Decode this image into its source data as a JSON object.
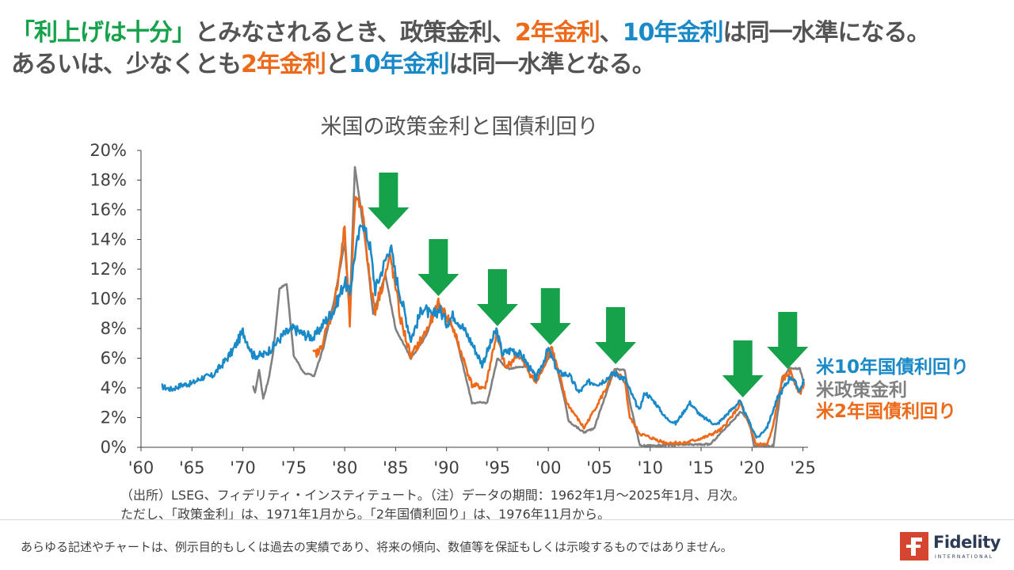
{
  "headline": {
    "line1": [
      {
        "text": "「利上げは十分」",
        "color": "green"
      },
      {
        "text": "とみなされるとき、政策金利、",
        "color": "gray"
      },
      {
        "text": "2年金利",
        "color": "orange"
      },
      {
        "text": "、",
        "color": "gray"
      },
      {
        "text": "10年金利",
        "color": "blue"
      },
      {
        "text": "は同一水準になる。",
        "color": "gray"
      }
    ],
    "line2": [
      {
        "text": "あるいは、少なくとも",
        "color": "gray"
      },
      {
        "text": "2年金利",
        "color": "orange"
      },
      {
        "text": "と",
        "color": "gray"
      },
      {
        "text": "10年金利",
        "color": "blue"
      },
      {
        "text": "は同一水準となる。",
        "color": "gray"
      }
    ]
  },
  "colors": {
    "green": "#15a24a",
    "orange": "#ec6a1a",
    "blue": "#1a89c8",
    "gray": "#545454",
    "policy": "#808080"
  },
  "chart_data": {
    "type": "line",
    "title": "米国の政策金利と国債利回り",
    "xlabel": "",
    "ylabel": "",
    "x_tick_labels": [
      "'60",
      "'65",
      "'70",
      "'75",
      "'80",
      "'85",
      "'90",
      "'95",
      "'00",
      "'05",
      "'10",
      "'15",
      "'20",
      "'25"
    ],
    "x_ticks": [
      1960,
      1965,
      1970,
      1975,
      1980,
      1985,
      1990,
      1995,
      2000,
      2005,
      2010,
      2015,
      2020,
      2025
    ],
    "y_tick_labels": [
      "0%",
      "2%",
      "4%",
      "6%",
      "8%",
      "10%",
      "12%",
      "14%",
      "16%",
      "18%",
      "20%"
    ],
    "ylim": [
      0,
      20
    ],
    "xlim": [
      1960,
      2025.5
    ],
    "series": [
      {
        "name": "米10年国債利回り",
        "color": "#1a89c8",
        "points": [
          [
            1962.0,
            4.1
          ],
          [
            1963.0,
            3.9
          ],
          [
            1964.0,
            4.2
          ],
          [
            1965.0,
            4.3
          ],
          [
            1966.0,
            4.7
          ],
          [
            1967.0,
            4.8
          ],
          [
            1968.0,
            5.6
          ],
          [
            1969.0,
            6.5
          ],
          [
            1970.0,
            7.8
          ],
          [
            1970.5,
            7.0
          ],
          [
            1971.0,
            6.2
          ],
          [
            1972.0,
            6.2
          ],
          [
            1973.0,
            6.8
          ],
          [
            1974.0,
            7.6
          ],
          [
            1975.0,
            8.0
          ],
          [
            1976.0,
            7.6
          ],
          [
            1977.0,
            7.4
          ],
          [
            1978.0,
            8.4
          ],
          [
            1979.0,
            9.3
          ],
          [
            1980.0,
            11.2
          ],
          [
            1980.5,
            10.3
          ],
          [
            1981.0,
            13.0
          ],
          [
            1981.7,
            15.3
          ],
          [
            1982.5,
            13.5
          ],
          [
            1983.0,
            10.6
          ],
          [
            1984.5,
            13.6
          ],
          [
            1985.0,
            11.6
          ],
          [
            1986.5,
            7.3
          ],
          [
            1987.7,
            9.5
          ],
          [
            1988.5,
            8.8
          ],
          [
            1989.3,
            9.3
          ],
          [
            1990.0,
            8.4
          ],
          [
            1990.7,
            8.9
          ],
          [
            1991.5,
            8.2
          ],
          [
            1992.5,
            7.0
          ],
          [
            1993.5,
            5.6
          ],
          [
            1994.9,
            7.9
          ],
          [
            1995.5,
            6.3
          ],
          [
            1996.5,
            6.6
          ],
          [
            1997.5,
            6.1
          ],
          [
            1998.8,
            4.6
          ],
          [
            2000.0,
            6.6
          ],
          [
            2001.0,
            5.0
          ],
          [
            2002.0,
            4.9
          ],
          [
            2003.0,
            3.7
          ],
          [
            2004.0,
            4.4
          ],
          [
            2005.0,
            4.3
          ],
          [
            2006.5,
            5.0
          ],
          [
            2007.5,
            4.6
          ],
          [
            2008.9,
            2.5
          ],
          [
            2009.5,
            3.7
          ],
          [
            2010.5,
            3.0
          ],
          [
            2011.5,
            2.0
          ],
          [
            2012.5,
            1.6
          ],
          [
            2013.9,
            3.0
          ],
          [
            2015.0,
            2.1
          ],
          [
            2016.5,
            1.5
          ],
          [
            2018.8,
            3.1
          ],
          [
            2019.7,
            1.7
          ],
          [
            2020.5,
            0.6
          ],
          [
            2021.5,
            1.4
          ],
          [
            2022.5,
            3.3
          ],
          [
            2023.8,
            4.8
          ],
          [
            2024.7,
            3.8
          ],
          [
            2025.1,
            4.6
          ]
        ]
      },
      {
        "name": "米政策金利",
        "color": "#808080",
        "points": [
          [
            1971.0,
            4.1
          ],
          [
            1971.2,
            3.7
          ],
          [
            1971.6,
            5.2
          ],
          [
            1972.0,
            3.3
          ],
          [
            1972.5,
            4.5
          ],
          [
            1973.0,
            6.5
          ],
          [
            1973.6,
            10.7
          ],
          [
            1974.3,
            11.0
          ],
          [
            1975.0,
            6.2
          ],
          [
            1976.0,
            5.0
          ],
          [
            1977.0,
            4.8
          ],
          [
            1977.9,
            6.7
          ],
          [
            1979.0,
            10.0
          ],
          [
            1980.0,
            13.8
          ],
          [
            1980.5,
            9.2
          ],
          [
            1981.0,
            18.9
          ],
          [
            1982.0,
            14.0
          ],
          [
            1982.8,
            9.0
          ],
          [
            1984.0,
            11.6
          ],
          [
            1985.0,
            8.0
          ],
          [
            1986.5,
            6.0
          ],
          [
            1988.0,
            7.5
          ],
          [
            1989.2,
            9.8
          ],
          [
            1990.8,
            7.8
          ],
          [
            1992.5,
            3.0
          ],
          [
            1994.0,
            3.0
          ],
          [
            1995.0,
            6.0
          ],
          [
            1996.0,
            5.3
          ],
          [
            1998.0,
            5.5
          ],
          [
            1999.0,
            4.75
          ],
          [
            2000.4,
            6.5
          ],
          [
            2001.5,
            3.5
          ],
          [
            2002.0,
            1.75
          ],
          [
            2003.5,
            1.0
          ],
          [
            2004.5,
            1.3
          ],
          [
            2006.5,
            5.25
          ],
          [
            2007.5,
            5.25
          ],
          [
            2008.0,
            3.0
          ],
          [
            2009.0,
            0.1
          ],
          [
            2015.9,
            0.2
          ],
          [
            2018.9,
            2.4
          ],
          [
            2019.7,
            1.8
          ],
          [
            2020.2,
            0.1
          ],
          [
            2022.1,
            0.1
          ],
          [
            2022.9,
            4.3
          ],
          [
            2023.6,
            5.3
          ],
          [
            2024.7,
            5.3
          ],
          [
            2025.1,
            4.3
          ]
        ]
      },
      {
        "name": "米2年国債利回り",
        "color": "#ec6a1a",
        "points": [
          [
            1976.9,
            6.3
          ],
          [
            1977.5,
            6.4
          ],
          [
            1978.5,
            8.5
          ],
          [
            1979.0,
            9.6
          ],
          [
            1980.0,
            14.8
          ],
          [
            1980.5,
            8.2
          ],
          [
            1981.0,
            16.5
          ],
          [
            1981.7,
            16.3
          ],
          [
            1982.5,
            11.0
          ],
          [
            1983.0,
            9.3
          ],
          [
            1984.5,
            12.8
          ],
          [
            1985.5,
            8.6
          ],
          [
            1986.5,
            6.1
          ],
          [
            1988.0,
            7.8
          ],
          [
            1989.2,
            9.6
          ],
          [
            1990.5,
            8.3
          ],
          [
            1992.5,
            4.2
          ],
          [
            1993.8,
            4.0
          ],
          [
            1994.9,
            7.6
          ],
          [
            1995.8,
            5.3
          ],
          [
            1997.0,
            6.3
          ],
          [
            1998.8,
            4.3
          ],
          [
            2000.3,
            6.8
          ],
          [
            2001.8,
            3.0
          ],
          [
            2003.5,
            1.3
          ],
          [
            2004.5,
            2.5
          ],
          [
            2006.5,
            5.0
          ],
          [
            2007.5,
            4.5
          ],
          [
            2008.0,
            2.0
          ],
          [
            2009.0,
            0.9
          ],
          [
            2011.5,
            0.3
          ],
          [
            2013.5,
            0.3
          ],
          [
            2015.5,
            0.7
          ],
          [
            2017.0,
            1.2
          ],
          [
            2018.9,
            2.9
          ],
          [
            2019.7,
            1.5
          ],
          [
            2020.4,
            0.2
          ],
          [
            2021.5,
            0.2
          ],
          [
            2022.0,
            1.2
          ],
          [
            2022.9,
            4.5
          ],
          [
            2023.8,
            5.1
          ],
          [
            2024.7,
            3.6
          ],
          [
            2025.1,
            4.3
          ]
        ]
      }
    ],
    "annotation_arrows_years": [
      1984.3,
      1989.2,
      1995.0,
      2000.2,
      2006.6,
      2019.1,
      2023.5
    ],
    "arrow_color": "#15a24a"
  },
  "legend": {
    "ten_year": "米10年国債利回り",
    "policy": "米政策金利",
    "two_year": "米2年国債利回り"
  },
  "source_note": {
    "line1": "（出所）LSEG、フィデリティ・インスティテュート。（注）データの期間：1962年1月～2025年1月、月次。",
    "line2": "ただし、「政策金利」は、1971年1月から。「2年国債利回り」は、1976年11月から。"
  },
  "disclaimer": "あらゆる記述やチャートは、例示目的もしくは過去の実績であり、将来の傾向、数値等を保証もしくは示唆するものではありません。",
  "logo": {
    "name": "Fidelity",
    "sub": "INTERNATIONAL"
  }
}
